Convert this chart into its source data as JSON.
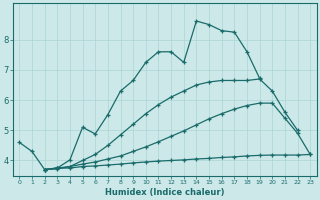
{
  "xlabel": "Humidex (Indice chaleur)",
  "background_color": "#cce8e8",
  "grid_color": "#aad4d4",
  "line_color": "#1a6b6b",
  "xlim": [
    -0.5,
    23.5
  ],
  "ylim": [
    3.5,
    9.2
  ],
  "yticks": [
    4,
    5,
    6,
    7,
    8
  ],
  "xticks": [
    0,
    1,
    2,
    3,
    4,
    5,
    6,
    7,
    8,
    9,
    10,
    11,
    12,
    13,
    14,
    15,
    16,
    17,
    18,
    19,
    20,
    21,
    22,
    23
  ],
  "lines": [
    {
      "x": [
        2,
        3,
        4,
        5,
        6,
        7,
        8,
        9,
        10,
        11,
        12,
        13,
        14,
        15,
        16,
        17,
        18,
        19,
        20,
        21,
        22,
        23
      ],
      "y": [
        3.7,
        3.75,
        3.75,
        3.8,
        3.82,
        3.85,
        3.88,
        3.92,
        3.95,
        3.98,
        4.0,
        4.02,
        4.05,
        4.07,
        4.1,
        4.12,
        4.15,
        4.17,
        4.18,
        4.18,
        4.18,
        4.2
      ]
    },
    {
      "x": [
        2,
        3,
        4,
        5,
        6,
        7,
        8,
        9,
        10,
        11,
        12,
        13,
        14,
        15,
        16,
        17,
        18,
        19,
        20,
        21,
        22,
        23
      ],
      "y": [
        3.7,
        3.75,
        3.8,
        3.88,
        3.95,
        4.05,
        4.15,
        4.3,
        4.45,
        4.62,
        4.8,
        4.98,
        5.18,
        5.38,
        5.55,
        5.7,
        5.82,
        5.9,
        5.9,
        5.4,
        4.9,
        4.2
      ]
    },
    {
      "x": [
        0,
        1,
        2,
        3,
        4,
        5,
        6,
        7,
        8,
        9,
        10,
        11,
        12,
        13,
        14,
        15,
        16,
        17,
        18,
        19,
        20,
        21,
        22
      ],
      "y": [
        4.6,
        4.3,
        3.7,
        3.72,
        3.8,
        4.0,
        4.2,
        4.5,
        4.85,
        5.2,
        5.55,
        5.85,
        6.1,
        6.3,
        6.5,
        6.6,
        6.65,
        6.65,
        6.65,
        6.7,
        6.3,
        5.6,
        5.0
      ]
    },
    {
      "x": [
        2,
        3,
        4,
        5,
        6,
        7,
        8,
        9,
        10,
        11,
        12,
        13,
        14,
        15,
        16,
        17,
        18,
        19
      ],
      "y": [
        3.7,
        3.75,
        4.02,
        5.1,
        4.88,
        5.52,
        6.3,
        6.65,
        7.25,
        7.6,
        7.6,
        7.25,
        8.62,
        8.5,
        8.3,
        8.25,
        7.6,
        6.72
      ]
    }
  ]
}
